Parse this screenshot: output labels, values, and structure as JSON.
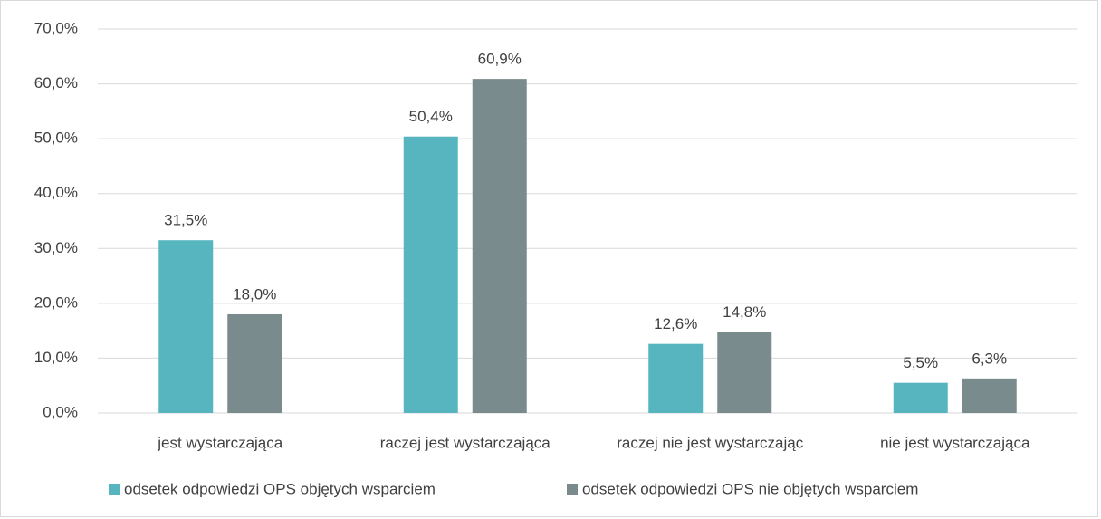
{
  "chart_data": {
    "type": "bar",
    "categories": [
      "jest wystarczająca",
      "raczej jest wystarczająca",
      "raczej nie jest wystarczając",
      "nie jest wystarczająca"
    ],
    "series": [
      {
        "name": "odsetek odpowiedzi OPS objętych wsparciem",
        "color": "#56b5bf",
        "values": [
          31.5,
          50.4,
          12.6,
          5.5
        ],
        "value_labels": [
          "31,5%",
          "50,4%",
          "12,6%",
          "5,5%"
        ]
      },
      {
        "name": "odsetek odpowiedzi OPS nie objętych wsparciem",
        "color": "#7a8b8d",
        "values": [
          18.0,
          60.9,
          14.8,
          6.3
        ],
        "value_labels": [
          "18,0%",
          "60,9%",
          "14,8%",
          "6,3%"
        ]
      }
    ],
    "ylim": [
      0,
      70
    ],
    "yticks": [
      {
        "value": 0,
        "label": "0,0%"
      },
      {
        "value": 10,
        "label": "10,0%"
      },
      {
        "value": 20,
        "label": "20,0%"
      },
      {
        "value": 30,
        "label": "30,0%"
      },
      {
        "value": 40,
        "label": "40,0%"
      },
      {
        "value": 50,
        "label": "50,0%"
      },
      {
        "value": 60,
        "label": "60,0%"
      },
      {
        "value": 70,
        "label": "70,0%"
      }
    ],
    "grid": true,
    "legend": "bottom"
  }
}
